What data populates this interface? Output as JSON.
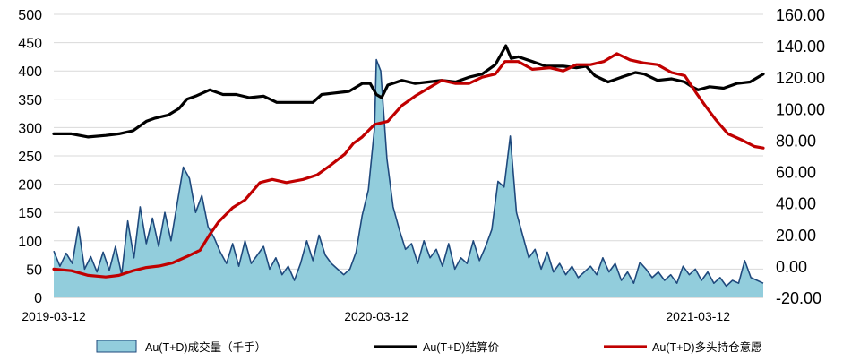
{
  "chart_data": {
    "type": "combo",
    "x_start": "2019-03-12",
    "x_end": "2021-05-25",
    "x_tick_labels": [
      "2019-03-12",
      "2020-03-12",
      "2021-03-12"
    ],
    "y_left": {
      "min": 0,
      "max": 500,
      "ticks": [
        0,
        50,
        100,
        150,
        200,
        250,
        300,
        350,
        400,
        450,
        500
      ]
    },
    "y_right": {
      "min": -20,
      "max": 160,
      "ticks": [
        "-20.00",
        "0.00",
        "20.00",
        "40.00",
        "60.00",
        "80.00",
        "100.00",
        "120.00",
        "140.00",
        "160.00"
      ]
    },
    "grid": "horizontal",
    "legend_position": "bottom",
    "series": [
      {
        "name": "Au(T+D)成交量（千手）",
        "kind": "area",
        "axis": "left",
        "fill": "#92CDDC",
        "stroke": "#1F497D",
        "points": [
          [
            "2019-03-12",
            82
          ],
          [
            "2019-03-19",
            55
          ],
          [
            "2019-03-26",
            78
          ],
          [
            "2019-04-02",
            60
          ],
          [
            "2019-04-09",
            125
          ],
          [
            "2019-04-16",
            50
          ],
          [
            "2019-04-23",
            72
          ],
          [
            "2019-04-30",
            45
          ],
          [
            "2019-05-07",
            80
          ],
          [
            "2019-05-14",
            48
          ],
          [
            "2019-05-21",
            90
          ],
          [
            "2019-05-28",
            40
          ],
          [
            "2019-06-04",
            135
          ],
          [
            "2019-06-11",
            70
          ],
          [
            "2019-06-18",
            160
          ],
          [
            "2019-06-25",
            95
          ],
          [
            "2019-07-02",
            140
          ],
          [
            "2019-07-09",
            90
          ],
          [
            "2019-07-16",
            150
          ],
          [
            "2019-07-23",
            100
          ],
          [
            "2019-07-30",
            165
          ],
          [
            "2019-08-06",
            230
          ],
          [
            "2019-08-13",
            210
          ],
          [
            "2019-08-20",
            150
          ],
          [
            "2019-08-27",
            180
          ],
          [
            "2019-09-03",
            125
          ],
          [
            "2019-09-10",
            105
          ],
          [
            "2019-09-17",
            80
          ],
          [
            "2019-09-24",
            60
          ],
          [
            "2019-10-01",
            95
          ],
          [
            "2019-10-08",
            55
          ],
          [
            "2019-10-15",
            100
          ],
          [
            "2019-10-22",
            60
          ],
          [
            "2019-10-29",
            75
          ],
          [
            "2019-11-05",
            90
          ],
          [
            "2019-11-12",
            50
          ],
          [
            "2019-11-19",
            70
          ],
          [
            "2019-11-26",
            40
          ],
          [
            "2019-12-03",
            55
          ],
          [
            "2019-12-10",
            30
          ],
          [
            "2019-12-17",
            60
          ],
          [
            "2019-12-24",
            100
          ],
          [
            "2019-12-31",
            65
          ],
          [
            "2020-01-07",
            110
          ],
          [
            "2020-01-14",
            75
          ],
          [
            "2020-01-21",
            60
          ],
          [
            "2020-01-28",
            50
          ],
          [
            "2020-02-04",
            40
          ],
          [
            "2020-02-11",
            50
          ],
          [
            "2020-02-18",
            80
          ],
          [
            "2020-02-25",
            145
          ],
          [
            "2020-03-03",
            190
          ],
          [
            "2020-03-10",
            300
          ],
          [
            "2020-03-12",
            420
          ],
          [
            "2020-03-17",
            400
          ],
          [
            "2020-03-24",
            245
          ],
          [
            "2020-03-31",
            160
          ],
          [
            "2020-04-07",
            120
          ],
          [
            "2020-04-14",
            85
          ],
          [
            "2020-04-21",
            95
          ],
          [
            "2020-04-28",
            60
          ],
          [
            "2020-05-05",
            100
          ],
          [
            "2020-05-12",
            70
          ],
          [
            "2020-05-19",
            85
          ],
          [
            "2020-05-26",
            55
          ],
          [
            "2020-06-02",
            95
          ],
          [
            "2020-06-09",
            50
          ],
          [
            "2020-06-16",
            70
          ],
          [
            "2020-06-23",
            60
          ],
          [
            "2020-06-30",
            100
          ],
          [
            "2020-07-07",
            65
          ],
          [
            "2020-07-14",
            90
          ],
          [
            "2020-07-21",
            120
          ],
          [
            "2020-07-28",
            205
          ],
          [
            "2020-08-04",
            195
          ],
          [
            "2020-08-11",
            285
          ],
          [
            "2020-08-18",
            150
          ],
          [
            "2020-08-25",
            110
          ],
          [
            "2020-09-01",
            70
          ],
          [
            "2020-09-08",
            85
          ],
          [
            "2020-09-15",
            50
          ],
          [
            "2020-09-22",
            80
          ],
          [
            "2020-09-29",
            45
          ],
          [
            "2020-10-06",
            60
          ],
          [
            "2020-10-13",
            40
          ],
          [
            "2020-10-20",
            55
          ],
          [
            "2020-10-27",
            35
          ],
          [
            "2020-11-03",
            45
          ],
          [
            "2020-11-10",
            55
          ],
          [
            "2020-11-17",
            40
          ],
          [
            "2020-11-24",
            70
          ],
          [
            "2020-12-01",
            45
          ],
          [
            "2020-12-08",
            60
          ],
          [
            "2020-12-15",
            30
          ],
          [
            "2020-12-22",
            45
          ],
          [
            "2020-12-29",
            25
          ],
          [
            "2021-01-05",
            62
          ],
          [
            "2021-01-12",
            50
          ],
          [
            "2021-01-19",
            35
          ],
          [
            "2021-01-26",
            45
          ],
          [
            "2021-02-02",
            30
          ],
          [
            "2021-02-09",
            40
          ],
          [
            "2021-02-16",
            25
          ],
          [
            "2021-02-23",
            55
          ],
          [
            "2021-03-02",
            40
          ],
          [
            "2021-03-09",
            50
          ],
          [
            "2021-03-16",
            30
          ],
          [
            "2021-03-23",
            45
          ],
          [
            "2021-03-30",
            25
          ],
          [
            "2021-04-06",
            35
          ],
          [
            "2021-04-13",
            20
          ],
          [
            "2021-04-20",
            30
          ],
          [
            "2021-04-27",
            25
          ],
          [
            "2021-05-04",
            65
          ],
          [
            "2021-05-11",
            35
          ],
          [
            "2021-05-18",
            30
          ],
          [
            "2021-05-25",
            25
          ]
        ]
      },
      {
        "name": "Au(T+D)结算价",
        "kind": "line",
        "axis": "right",
        "color": "#000000",
        "points": [
          [
            "2019-03-12",
            84
          ],
          [
            "2019-04-01",
            84
          ],
          [
            "2019-04-20",
            82
          ],
          [
            "2019-05-10",
            83
          ],
          [
            "2019-05-25",
            84
          ],
          [
            "2019-06-10",
            86
          ],
          [
            "2019-06-25",
            92
          ],
          [
            "2019-07-05",
            94
          ],
          [
            "2019-07-20",
            96
          ],
          [
            "2019-08-01",
            100
          ],
          [
            "2019-08-10",
            106
          ],
          [
            "2019-08-20",
            108
          ],
          [
            "2019-09-05",
            112
          ],
          [
            "2019-09-20",
            109
          ],
          [
            "2019-10-05",
            109
          ],
          [
            "2019-10-20",
            107
          ],
          [
            "2019-11-05",
            108
          ],
          [
            "2019-11-20",
            104
          ],
          [
            "2019-12-10",
            104
          ],
          [
            "2019-12-31",
            104
          ],
          [
            "2020-01-10",
            109
          ],
          [
            "2020-01-25",
            110
          ],
          [
            "2020-02-10",
            111
          ],
          [
            "2020-02-25",
            116
          ],
          [
            "2020-03-05",
            116
          ],
          [
            "2020-03-12",
            109
          ],
          [
            "2020-03-18",
            107
          ],
          [
            "2020-03-25",
            115
          ],
          [
            "2020-04-10",
            118
          ],
          [
            "2020-04-25",
            116
          ],
          [
            "2020-05-10",
            117
          ],
          [
            "2020-05-25",
            118
          ],
          [
            "2020-06-10",
            117
          ],
          [
            "2020-06-25",
            120
          ],
          [
            "2020-07-10",
            122
          ],
          [
            "2020-07-25",
            128
          ],
          [
            "2020-08-06",
            140
          ],
          [
            "2020-08-12",
            132
          ],
          [
            "2020-08-20",
            133
          ],
          [
            "2020-09-05",
            130
          ],
          [
            "2020-09-20",
            127
          ],
          [
            "2020-10-10",
            127
          ],
          [
            "2020-10-25",
            126
          ],
          [
            "2020-11-05",
            127
          ],
          [
            "2020-11-15",
            121
          ],
          [
            "2020-11-30",
            117
          ],
          [
            "2020-12-15",
            120
          ],
          [
            "2020-12-31",
            123
          ],
          [
            "2021-01-10",
            122
          ],
          [
            "2021-01-25",
            118
          ],
          [
            "2021-02-10",
            119
          ],
          [
            "2021-02-25",
            117
          ],
          [
            "2021-03-05",
            114
          ],
          [
            "2021-03-12",
            112
          ],
          [
            "2021-03-25",
            114
          ],
          [
            "2021-04-10",
            113
          ],
          [
            "2021-04-25",
            116
          ],
          [
            "2021-05-10",
            117
          ],
          [
            "2021-05-25",
            122
          ]
        ]
      },
      {
        "name": "Au(T+D)多头持仓意愿",
        "kind": "line",
        "axis": "right",
        "color": "#C00000",
        "points": [
          [
            "2019-03-12",
            -2
          ],
          [
            "2019-04-01",
            -3
          ],
          [
            "2019-04-20",
            -6
          ],
          [
            "2019-05-10",
            -7
          ],
          [
            "2019-05-25",
            -6
          ],
          [
            "2019-06-10",
            -3
          ],
          [
            "2019-06-25",
            -1
          ],
          [
            "2019-07-10",
            0
          ],
          [
            "2019-07-25",
            2
          ],
          [
            "2019-08-10",
            6
          ],
          [
            "2019-08-25",
            10
          ],
          [
            "2019-09-05",
            20
          ],
          [
            "2019-09-15",
            28
          ],
          [
            "2019-10-01",
            37
          ],
          [
            "2019-10-15",
            42
          ],
          [
            "2019-11-01",
            53
          ],
          [
            "2019-11-15",
            55
          ],
          [
            "2019-12-01",
            53
          ],
          [
            "2019-12-20",
            55
          ],
          [
            "2020-01-05",
            58
          ],
          [
            "2020-01-20",
            64
          ],
          [
            "2020-02-05",
            71
          ],
          [
            "2020-02-15",
            78
          ],
          [
            "2020-02-25",
            82
          ],
          [
            "2020-03-10",
            90
          ],
          [
            "2020-03-25",
            92
          ],
          [
            "2020-04-10",
            102
          ],
          [
            "2020-04-25",
            108
          ],
          [
            "2020-05-10",
            113
          ],
          [
            "2020-05-25",
            118
          ],
          [
            "2020-06-10",
            116
          ],
          [
            "2020-06-25",
            116
          ],
          [
            "2020-07-10",
            120
          ],
          [
            "2020-07-25",
            122
          ],
          [
            "2020-08-05",
            130
          ],
          [
            "2020-08-20",
            130
          ],
          [
            "2020-09-05",
            125
          ],
          [
            "2020-09-25",
            126
          ],
          [
            "2020-10-10",
            124
          ],
          [
            "2020-10-25",
            128
          ],
          [
            "2020-11-10",
            128
          ],
          [
            "2020-11-25",
            130
          ],
          [
            "2020-12-10",
            135
          ],
          [
            "2020-12-25",
            131
          ],
          [
            "2021-01-10",
            129
          ],
          [
            "2021-01-25",
            128
          ],
          [
            "2021-02-10",
            123
          ],
          [
            "2021-02-25",
            121
          ],
          [
            "2021-03-10",
            110
          ],
          [
            "2021-03-20",
            102
          ],
          [
            "2021-04-01",
            93
          ],
          [
            "2021-04-15",
            84
          ],
          [
            "2021-05-01",
            80
          ],
          [
            "2021-05-15",
            76
          ],
          [
            "2021-05-25",
            75
          ]
        ]
      }
    ]
  }
}
